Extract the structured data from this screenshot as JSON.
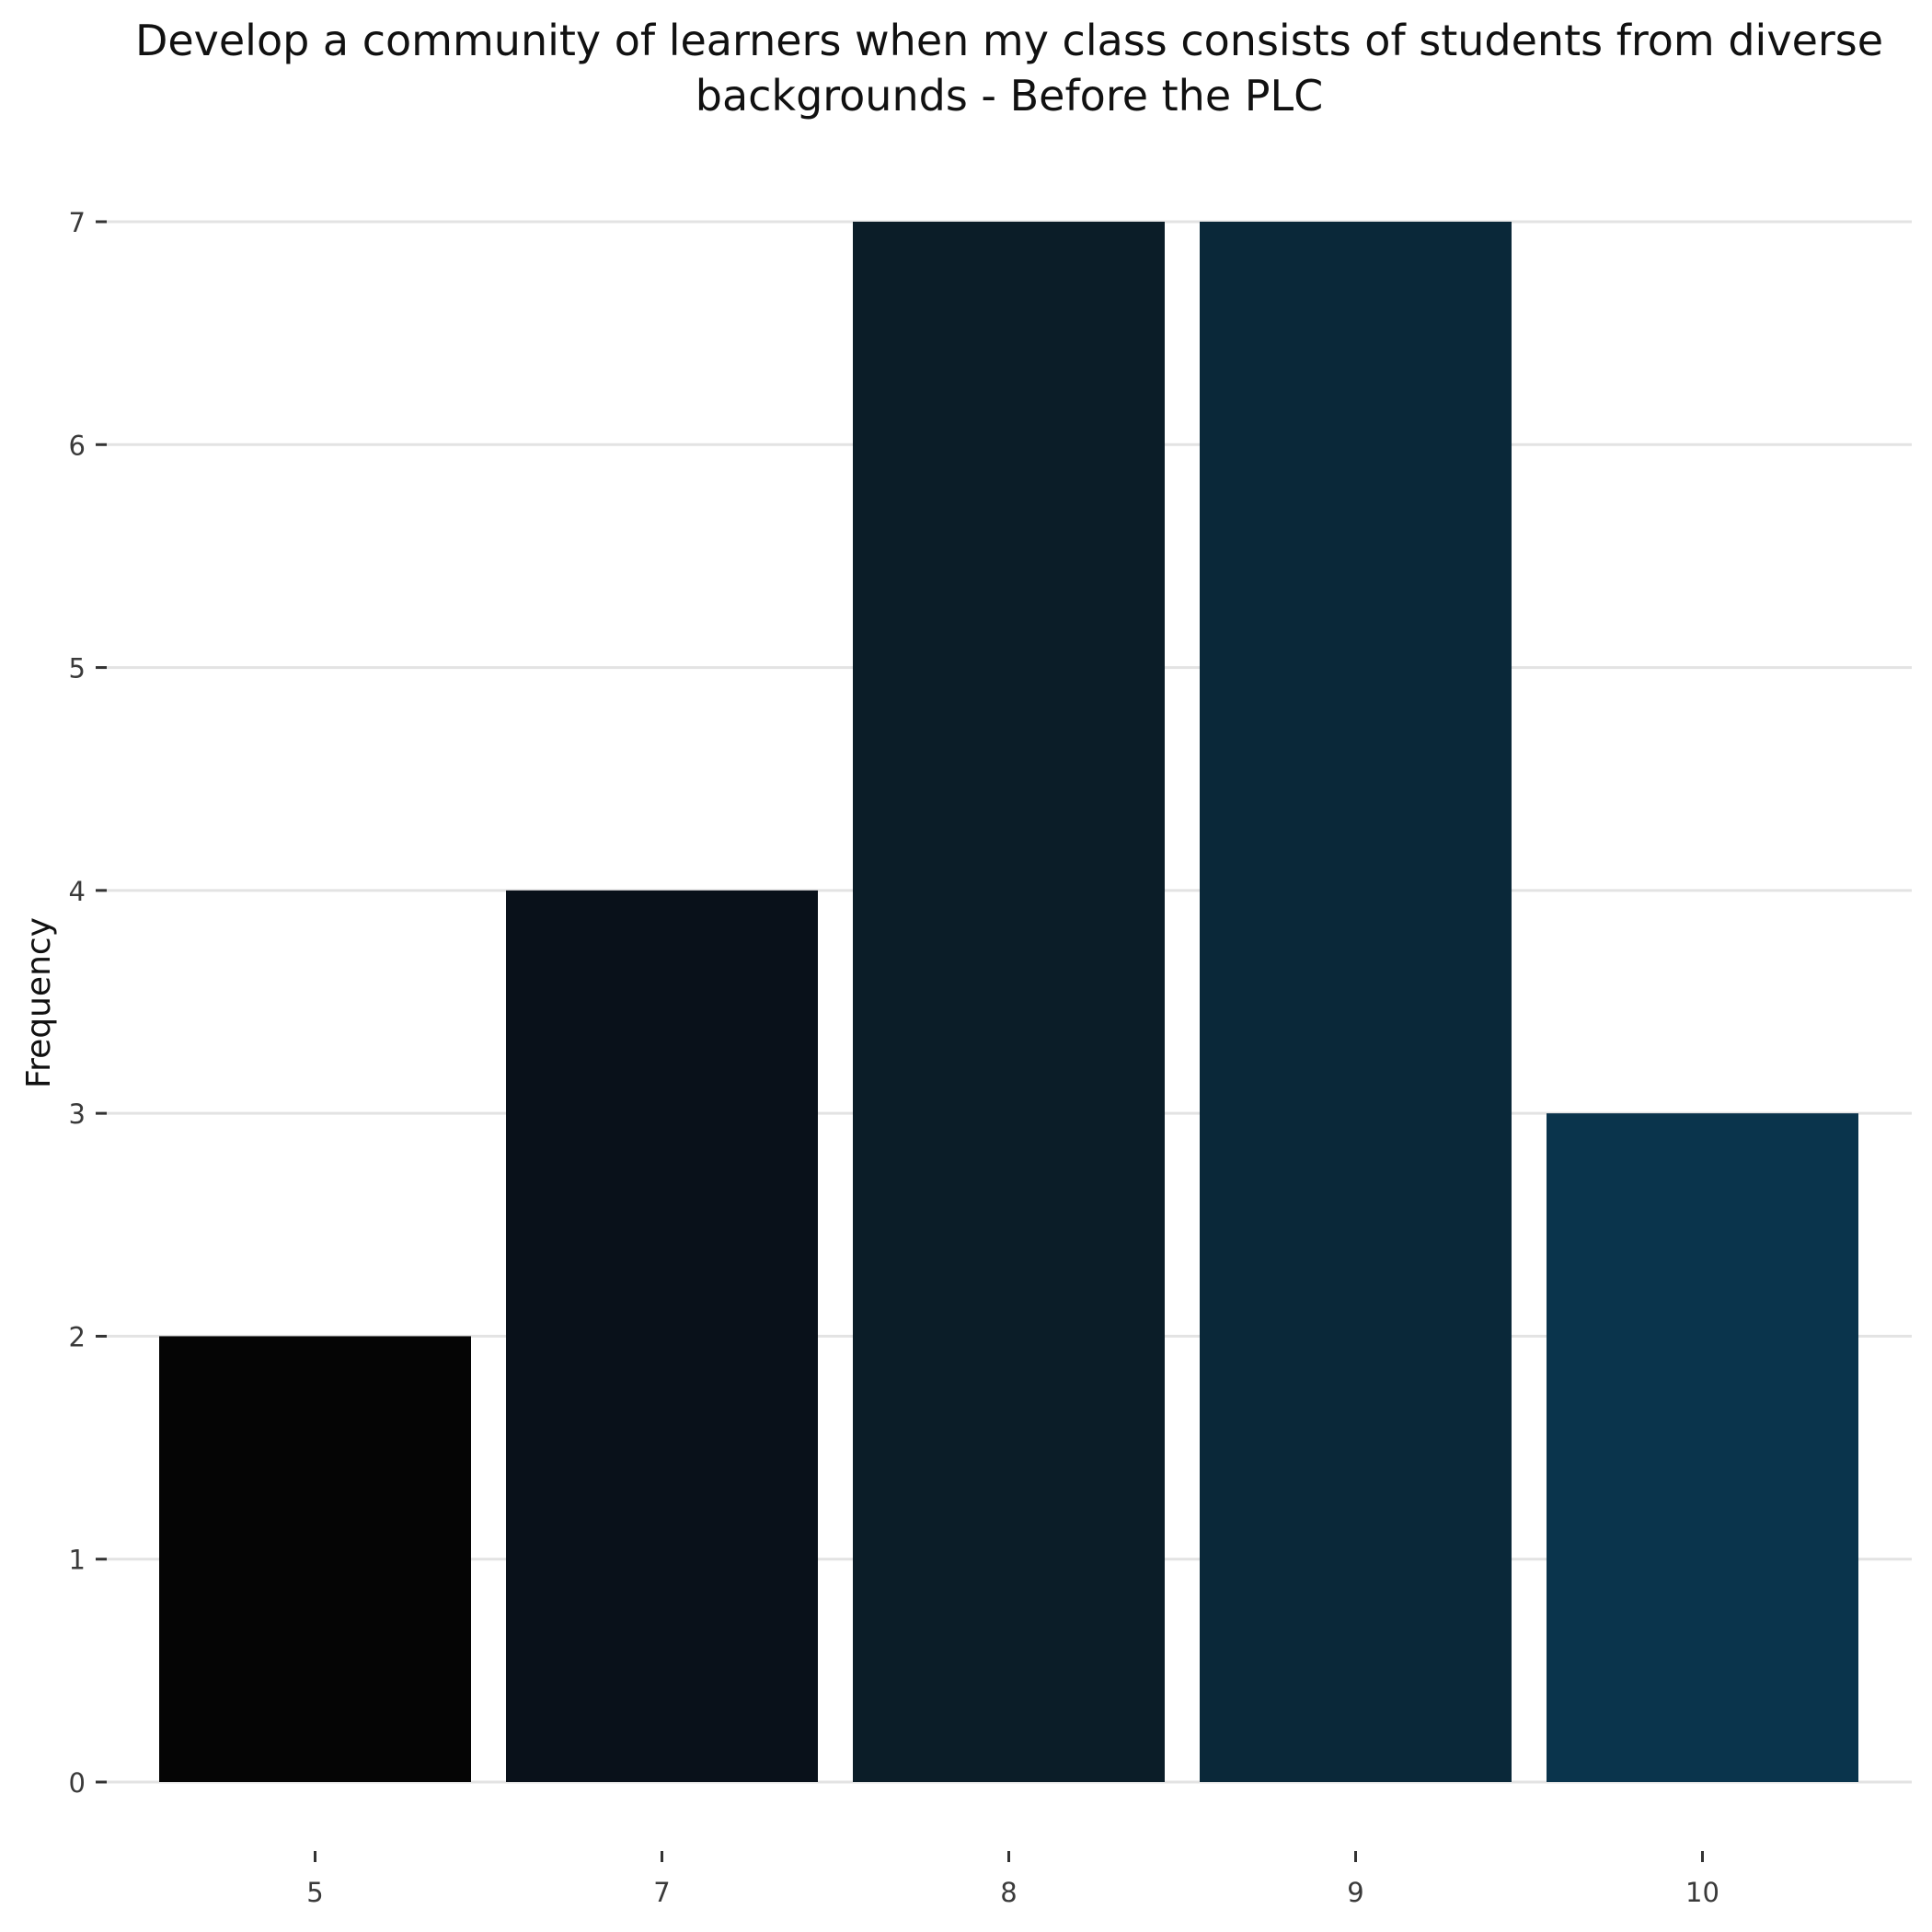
{
  "chart_data": {
    "type": "bar",
    "title_lines": [
      "Develop a community of learners when my class consists of students from diverse",
      "backgrounds - Before the PLC"
    ],
    "xlabel": "",
    "ylabel": "Frequency",
    "categories": [
      "5",
      "7",
      "8",
      "9",
      "10"
    ],
    "values": [
      2,
      4,
      7,
      7,
      3
    ],
    "colors": [
      "#050505",
      "#09111a",
      "#0b1d28",
      "#0a2839",
      "#0a344c"
    ],
    "ylim": [
      0,
      7
    ],
    "y_ticks": [
      0,
      1,
      2,
      3,
      4,
      5,
      6,
      7
    ],
    "grid": true,
    "legend": "none"
  }
}
